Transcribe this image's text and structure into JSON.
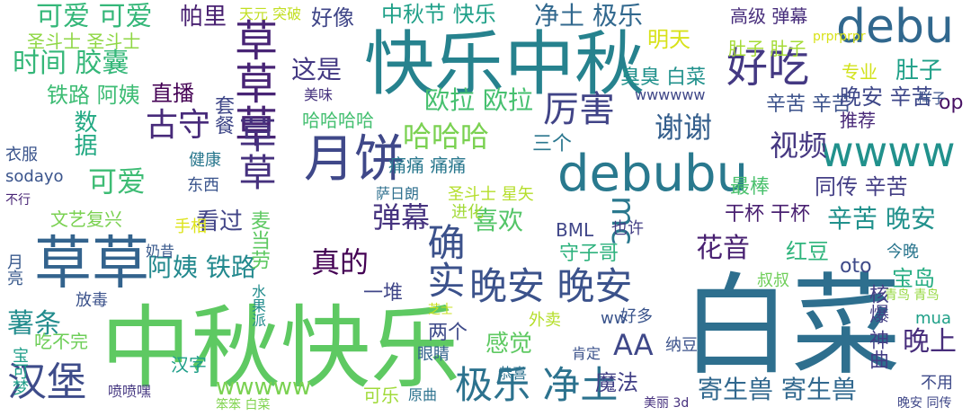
{
  "words": [
    {
      "text": "白菜",
      "color": "#2e6f8e"
    },
    {
      "text": "中秋快乐",
      "color": "#5ec962"
    },
    {
      "text": "快乐中秋",
      "color": "#26828e"
    },
    {
      "text": "草草",
      "color": "#33638d"
    },
    {
      "text": "debubu",
      "color": "#29798e"
    },
    {
      "text": "草草草",
      "color": "#482475"
    },
    {
      "text": "debu",
      "color": "#31688e"
    },
    {
      "text": "月饼",
      "color": "#3f4889"
    },
    {
      "text": "wwww",
      "color": "#21918c"
    },
    {
      "text": "好吃",
      "color": "#443983"
    },
    {
      "text": "晚安 晚安",
      "color": "#3b528b"
    },
    {
      "text": "极乐 净土",
      "color": "#2c728e"
    },
    {
      "text": "草草",
      "color": "#46317e"
    },
    {
      "text": "汉堡",
      "color": "#3e4c8a"
    },
    {
      "text": "确实",
      "color": "#3b518b"
    },
    {
      "text": "厉害",
      "color": "#414487"
    },
    {
      "text": "古守",
      "color": "#472a7a"
    },
    {
      "text": "mc",
      "color": "#2a788e"
    },
    {
      "text": "可爱 可爱",
      "color": "#35b779"
    },
    {
      "text": "时间 胶囊",
      "color": "#35b779"
    },
    {
      "text": "哈哈哈",
      "color": "#7ad151"
    },
    {
      "text": "弹幕",
      "color": "#46337f"
    },
    {
      "text": "真的",
      "color": "#440154"
    },
    {
      "text": "视频",
      "color": "#453781"
    },
    {
      "text": "谢谢",
      "color": "#355f8d"
    },
    {
      "text": "可爱",
      "color": "#3dbc74"
    },
    {
      "text": "寄生兽 寄生兽",
      "color": "#31688e"
    },
    {
      "text": "薯条",
      "color": "#228c8d"
    },
    {
      "text": "这是",
      "color": "#443983"
    },
    {
      "text": "花音",
      "color": "#482071"
    },
    {
      "text": "晚上",
      "color": "#472d7b"
    },
    {
      "text": "喜欢",
      "color": "#54c568"
    },
    {
      "text": "欧拉 欧拉",
      "color": "#46c06f"
    },
    {
      "text": "铁路 阿姨",
      "color": "#3dbc74"
    },
    {
      "text": "阿姨 铁路",
      "color": "#23898e"
    },
    {
      "text": "宝岛",
      "color": "#25ac82"
    },
    {
      "text": "中秋节 快乐",
      "color": "#1fa088"
    },
    {
      "text": "净土 极乐",
      "color": "#31688e"
    },
    {
      "text": "帕里",
      "color": "#482071"
    },
    {
      "text": "好像",
      "color": "#404688"
    },
    {
      "text": "直播",
      "color": "#440154"
    },
    {
      "text": "圣斗士 圣斗士",
      "color": "#8fd744"
    },
    {
      "text": "肚子 肚子",
      "color": "#a5db36"
    },
    {
      "text": "肚子",
      "color": "#1fa088"
    },
    {
      "text": "高级 弹幕",
      "color": "#472d7b"
    },
    {
      "text": "辛苦 辛苦",
      "color": "#3b528b"
    },
    {
      "text": "晚安 辛苦",
      "color": "#3f4889"
    },
    {
      "text": "辛苦 晚安",
      "color": "#21918c"
    },
    {
      "text": "同传 辛苦",
      "color": "#433e85"
    },
    {
      "text": "AA",
      "color": "#3f4889"
    },
    {
      "text": "感觉",
      "color": "#5ec962"
    },
    {
      "text": "魔法",
      "color": "#424086"
    },
    {
      "text": "看过",
      "color": "#414487"
    },
    {
      "text": "wwwww",
      "color": "#7ad151"
    },
    {
      "text": "干杯 干杯",
      "color": "#481f70"
    },
    {
      "text": "op",
      "color": "#471164"
    },
    {
      "text": "oto",
      "color": "#3e4a89"
    },
    {
      "text": "明天",
      "color": "#d8e219"
    },
    {
      "text": "哈哈哈哈",
      "color": "#44bf70"
    },
    {
      "text": "BML",
      "color": "#404688"
    },
    {
      "text": "文艺复兴",
      "color": "#7ad151"
    },
    {
      "text": "套餐",
      "color": "#3f4788"
    },
    {
      "text": "推荐",
      "color": "#482878"
    },
    {
      "text": "专业",
      "color": "#d2e21b"
    },
    {
      "text": "最棒",
      "color": "#4ac16d"
    },
    {
      "text": "两个",
      "color": "#3e4a89"
    },
    {
      "text": "一堆",
      "color": "#404688"
    },
    {
      "text": "痛痛 痛痛",
      "color": "#2a788e"
    },
    {
      "text": "圣斗士 星矢",
      "color": "#b5de2b"
    },
    {
      "text": "守子哥",
      "color": "#2db27d"
    },
    {
      "text": "红豆",
      "color": "#2fb47c"
    },
    {
      "text": "也许",
      "color": "#433e85"
    },
    {
      "text": "麦当劳",
      "color": "#5ec962"
    },
    {
      "text": "三个",
      "color": "#2a768e"
    },
    {
      "text": "数据",
      "color": "#23a983"
    },
    {
      "text": "臭臭 白菜",
      "color": "#21918c"
    },
    {
      "text": "吃不完",
      "color": "#6ece58"
    },
    {
      "text": "汉字",
      "color": "#1f9e89"
    },
    {
      "text": "可乐",
      "color": "#a0da39"
    },
    {
      "text": "眼睛",
      "color": "#33638d"
    },
    {
      "text": "核爆 神曲",
      "color": "#433e85"
    },
    {
      "text": "东西",
      "color": "#3a548c"
    },
    {
      "text": "健康",
      "color": "#2a788e"
    },
    {
      "text": "衣服",
      "color": "#3a548c"
    },
    {
      "text": "sodayo",
      "color": "#3a548c"
    },
    {
      "text": "不行",
      "color": "#482576"
    },
    {
      "text": "今晚",
      "color": "#2a768e"
    },
    {
      "text": "不用",
      "color": "#3e4a89"
    },
    {
      "text": "美味",
      "color": "#46337f"
    },
    {
      "text": "天元 突破",
      "color": "#c2df23"
    },
    {
      "text": "样子",
      "color": "#3b528b"
    },
    {
      "text": "进化",
      "color": "#a2da37"
    },
    {
      "text": "萨日朗",
      "color": "#2e6f8e"
    },
    {
      "text": "手相",
      "color": "#dde318"
    },
    {
      "text": "奶昔",
      "color": "#38598c"
    },
    {
      "text": "月亮",
      "color": "#38598c"
    },
    {
      "text": "宝可梦",
      "color": "#1f9e89"
    },
    {
      "text": "好多",
      "color": "#3a548c"
    },
    {
      "text": "肯定",
      "color": "#3b528b"
    },
    {
      "text": "恭喜",
      "color": "#2c728e"
    },
    {
      "text": "纳豆",
      "color": "#3b528b"
    },
    {
      "text": "外卖",
      "color": "#b5de2b"
    },
    {
      "text": "放毒",
      "color": "#3b528b"
    },
    {
      "text": "叔叔",
      "color": "#6ece58"
    },
    {
      "text": "青鸟 青鸟",
      "color": "#95d840"
    },
    {
      "text": "芝士",
      "color": "#c8e020"
    },
    {
      "text": "喷喷嘿",
      "color": "#453781"
    },
    {
      "text": "原曲",
      "color": "#2c728e"
    },
    {
      "text": "mua",
      "color": "#1fa088"
    },
    {
      "text": "ww",
      "color": "#3a548c"
    },
    {
      "text": "wwwwww",
      "color": "#3f4788"
    },
    {
      "text": "prprprpr",
      "color": "#d8e219"
    },
    {
      "text": "水果派",
      "color": "#228c8d"
    },
    {
      "text": "美丽 3d",
      "color": "#46307e"
    },
    {
      "text": "晚安 同传",
      "color": "#3f4788"
    },
    {
      "text": "笨笨 白菜",
      "color": "#7fd34e"
    }
  ]
}
